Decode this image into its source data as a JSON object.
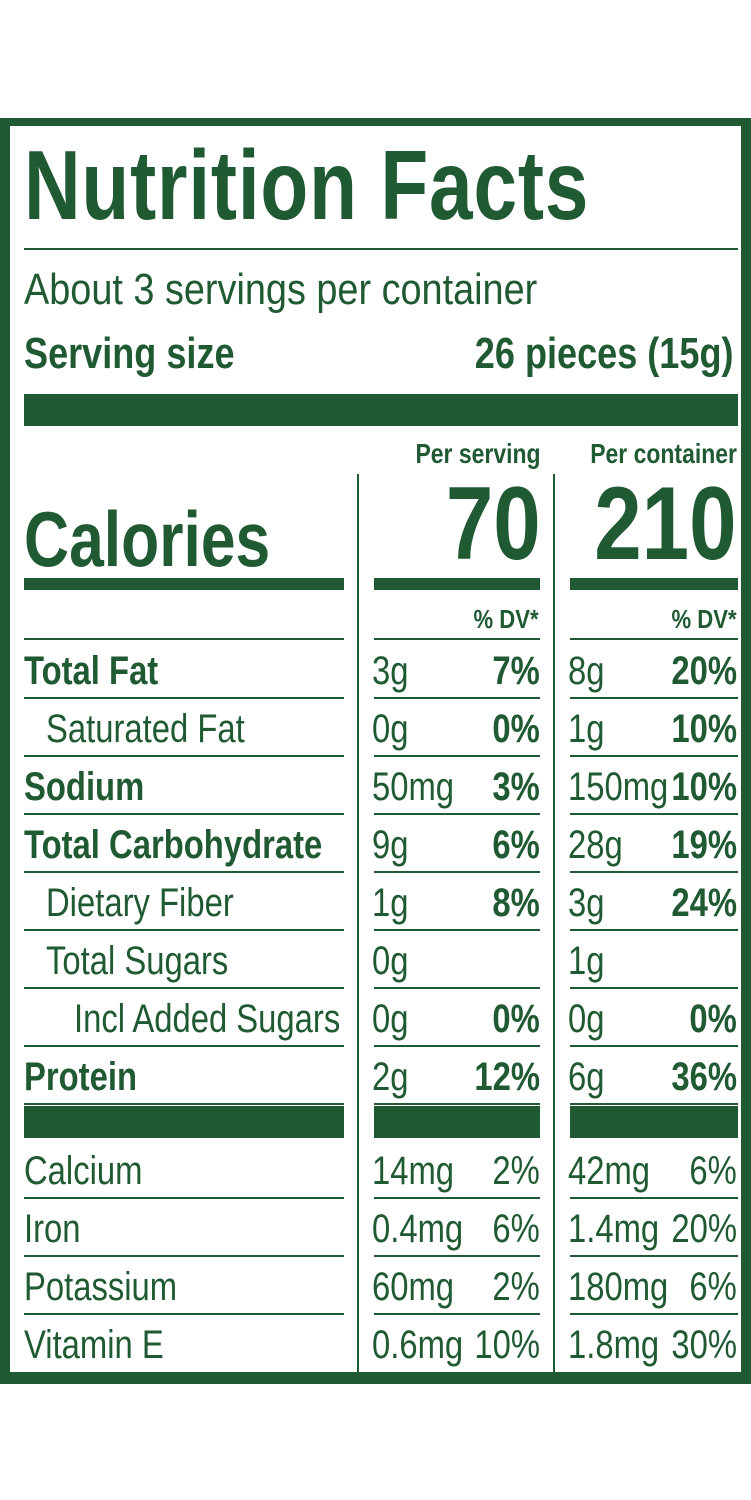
{
  "title": "Nutrition Facts",
  "servings_per_container": "About 3 servings per container",
  "serving_size_label": "Serving size",
  "serving_size_value": "26 pieces (15g)",
  "per_serving_label": "Per serving",
  "per_container_label": "Per container",
  "calories_label": "Calories",
  "calories_per_serving": "70",
  "calories_per_container": "210",
  "dv_label": "% DV*",
  "nutrients": [
    {
      "name": "Total Fat",
      "bold": true,
      "indent": 0,
      "serving_amount": "3g",
      "serving_dv": "7%",
      "container_amount": "8g",
      "container_dv": "20%"
    },
    {
      "name": "Saturated Fat",
      "bold": false,
      "indent": 1,
      "serving_amount": "0g",
      "serving_dv": "0%",
      "container_amount": "1g",
      "container_dv": "10%"
    },
    {
      "name": "Sodium",
      "bold": true,
      "indent": 0,
      "serving_amount": "50mg",
      "serving_dv": "3%",
      "container_amount": "150mg",
      "container_dv": "10%"
    },
    {
      "name": "Total Carbohydrate",
      "bold": true,
      "indent": 0,
      "serving_amount": "9g",
      "serving_dv": "6%",
      "container_amount": "28g",
      "container_dv": "19%"
    },
    {
      "name": "Dietary Fiber",
      "bold": false,
      "indent": 1,
      "serving_amount": "1g",
      "serving_dv": "8%",
      "container_amount": "3g",
      "container_dv": "24%"
    },
    {
      "name": "Total Sugars",
      "bold": false,
      "indent": 1,
      "serving_amount": "0g",
      "serving_dv": "",
      "container_amount": "1g",
      "container_dv": ""
    },
    {
      "name": "Incl Added Sugars",
      "bold": false,
      "indent": 2,
      "serving_amount": "0g",
      "serving_dv": "0%",
      "container_amount": "0g",
      "container_dv": "0%"
    },
    {
      "name": "Protein",
      "bold": true,
      "indent": 0,
      "serving_amount": "2g",
      "serving_dv": "12%",
      "container_amount": "6g",
      "container_dv": "36%"
    }
  ],
  "vitamins": [
    {
      "name": "Calcium",
      "serving_amount": "14mg",
      "serving_dv": "2%",
      "container_amount": "42mg",
      "container_dv": "6%"
    },
    {
      "name": "Iron",
      "serving_amount": "0.4mg",
      "serving_dv": "6%",
      "container_amount": "1.4mg",
      "container_dv": "20%"
    },
    {
      "name": "Potassium",
      "serving_amount": "60mg",
      "serving_dv": "2%",
      "container_amount": "180mg",
      "container_dv": "6%"
    },
    {
      "name": "Vitamin E",
      "serving_amount": "0.6mg",
      "serving_dv": "10%",
      "container_amount": "1.8mg",
      "container_dv": "30%"
    }
  ],
  "colors": {
    "brand_green": "#1f5a33",
    "background": "#ffffff"
  }
}
